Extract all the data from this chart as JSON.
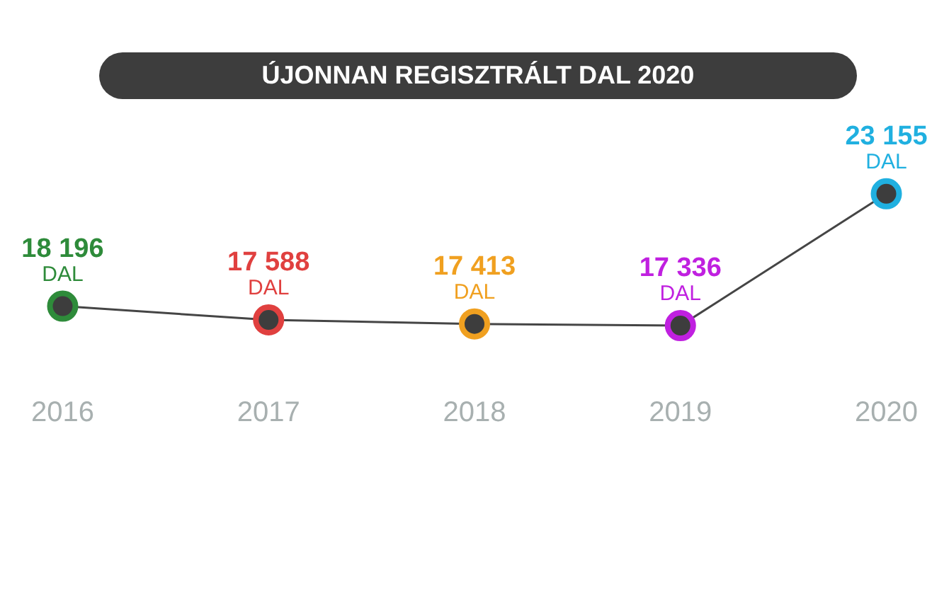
{
  "chart_data": {
    "type": "line",
    "title": "ÚJONNAN REGISZTRÁLT DAL 2020",
    "categories": [
      "2016",
      "2017",
      "2018",
      "2019",
      "2020"
    ],
    "series": [
      {
        "color": "#454545",
        "colors": [
          "#2e8b3a",
          "#e0403f",
          "#f0a020",
          "#c020e0",
          "#20b0e0"
        ],
        "values": [
          18196,
          17588,
          17413,
          17336,
          23155
        ],
        "value_labels": [
          "18 196",
          "17 588",
          "17 413",
          "17 336",
          "23 155"
        ]
      }
    ],
    "annotations": [
      {
        "text": "DAL",
        "x": "2016",
        "y": 18196
      },
      {
        "text": "DAL",
        "x": "2017",
        "y": 17588
      },
      {
        "text": "DAL",
        "x": "2018",
        "y": 17413
      },
      {
        "text": "DAL",
        "x": "2019",
        "y": 17336
      },
      {
        "text": "DAL",
        "x": "2020",
        "y": 23155
      }
    ],
    "marker": "circle",
    "line_style": "solid",
    "grid": false,
    "legend": false,
    "tick_labels": "x"
  }
}
